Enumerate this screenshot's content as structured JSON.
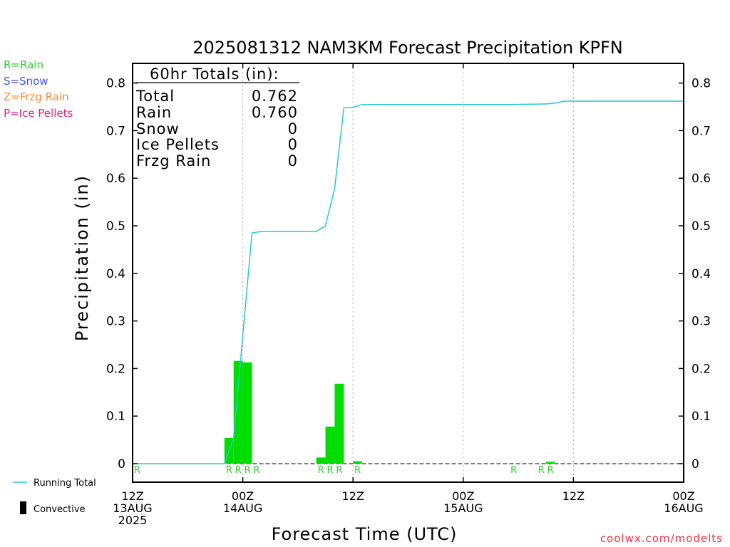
{
  "title": "2025081312 NAM3KM Forecast Precipitation KPFN",
  "legend_types": [
    {
      "label": "R=Rain",
      "color": "#33cc33"
    },
    {
      "label": "S=Snow",
      "color": "#4455ee"
    },
    {
      "label": "Z=Frzg Rain",
      "color": "#ff8833"
    },
    {
      "label": "P=Ice Pellets",
      "color": "#ee2277"
    }
  ],
  "totals": {
    "header": "60hr Totals (in):",
    "rows": [
      {
        "label": "Total",
        "value": "0.762"
      },
      {
        "label": "Rain",
        "value": "0.760"
      },
      {
        "label": "Snow",
        "value": "0"
      },
      {
        "label": "Ice Pellets",
        "value": "0"
      },
      {
        "label": "Frzg Rain",
        "value": "0"
      }
    ]
  },
  "legend_bottom": {
    "running_total": "Running Total",
    "convective": "Convective"
  },
  "credit": "coolwx.com/modelts",
  "colors": {
    "bar": "#00dd00",
    "line": "#22cccc",
    "rain_marker": "#33cc33",
    "credit": "#ee3344",
    "frame": "#000000",
    "grid": "#aaaaaa"
  },
  "chart_data": {
    "type": "bar",
    "title": "2025081312 NAM3KM Forecast Precipitation KPFN",
    "xlabel": "Forecast Time (UTC)",
    "ylabel": "Precipitation (in)",
    "xlim_hours": [
      0,
      60
    ],
    "ylim": [
      -0.04,
      0.84
    ],
    "yticks": [
      0,
      0.1,
      0.2,
      0.3,
      0.4,
      0.5,
      0.6,
      0.7,
      0.8
    ],
    "ytick_labels": [
      "0",
      "0.1",
      "0.2",
      "0.3",
      "0.4",
      "0.5",
      "0.6",
      "0.7",
      "0.8"
    ],
    "xticks": [
      {
        "hour": 0,
        "lines": [
          "12Z",
          "13AUG",
          "2025"
        ]
      },
      {
        "hour": 12,
        "lines": [
          "00Z",
          "14AUG"
        ]
      },
      {
        "hour": 24,
        "lines": [
          "12Z"
        ]
      },
      {
        "hour": 36,
        "lines": [
          "00Z",
          "15AUG"
        ]
      },
      {
        "hour": 48,
        "lines": [
          "12Z"
        ]
      },
      {
        "hour": 60,
        "lines": [
          "00Z",
          "16AUG"
        ]
      }
    ],
    "grid_hours": [
      12,
      24,
      36,
      48
    ],
    "hourly_precip": [
      {
        "hour": 11,
        "value": 0.054
      },
      {
        "hour": 12,
        "value": 0.216
      },
      {
        "hour": 13,
        "value": 0.213
      },
      {
        "hour": 21,
        "value": 0.013
      },
      {
        "hour": 22,
        "value": 0.078
      },
      {
        "hour": 23,
        "value": 0.168
      },
      {
        "hour": 25,
        "value": 0.005
      },
      {
        "hour": 46,
        "value": 0.004
      }
    ],
    "running_total": [
      {
        "hour": 0.5,
        "value": 0
      },
      {
        "hour": 10,
        "value": 0
      },
      {
        "hour": 11,
        "value": 0.054
      },
      {
        "hour": 12,
        "value": 0.27
      },
      {
        "hour": 13,
        "value": 0.485
      },
      {
        "hour": 14,
        "value": 0.488
      },
      {
        "hour": 20,
        "value": 0.488
      },
      {
        "hour": 21,
        "value": 0.5
      },
      {
        "hour": 22,
        "value": 0.578
      },
      {
        "hour": 23,
        "value": 0.748
      },
      {
        "hour": 24,
        "value": 0.749
      },
      {
        "hour": 25,
        "value": 0.755
      },
      {
        "hour": 41,
        "value": 0.755
      },
      {
        "hour": 45,
        "value": 0.756
      },
      {
        "hour": 46,
        "value": 0.758
      },
      {
        "hour": 47,
        "value": 0.762
      },
      {
        "hour": 60,
        "value": 0.762
      }
    ],
    "precip_type_markers": [
      {
        "hour": 1,
        "label": "R"
      },
      {
        "hour": 11,
        "label": "R"
      },
      {
        "hour": 12,
        "label": "R"
      },
      {
        "hour": 13,
        "label": "R"
      },
      {
        "hour": 14,
        "label": "R"
      },
      {
        "hour": 21,
        "label": "R"
      },
      {
        "hour": 22,
        "label": "R"
      },
      {
        "hour": 23,
        "label": "R"
      },
      {
        "hour": 25,
        "label": "R"
      },
      {
        "hour": 42,
        "label": "R"
      },
      {
        "hour": 45,
        "label": "R"
      },
      {
        "hour": 46,
        "label": "R"
      }
    ]
  }
}
